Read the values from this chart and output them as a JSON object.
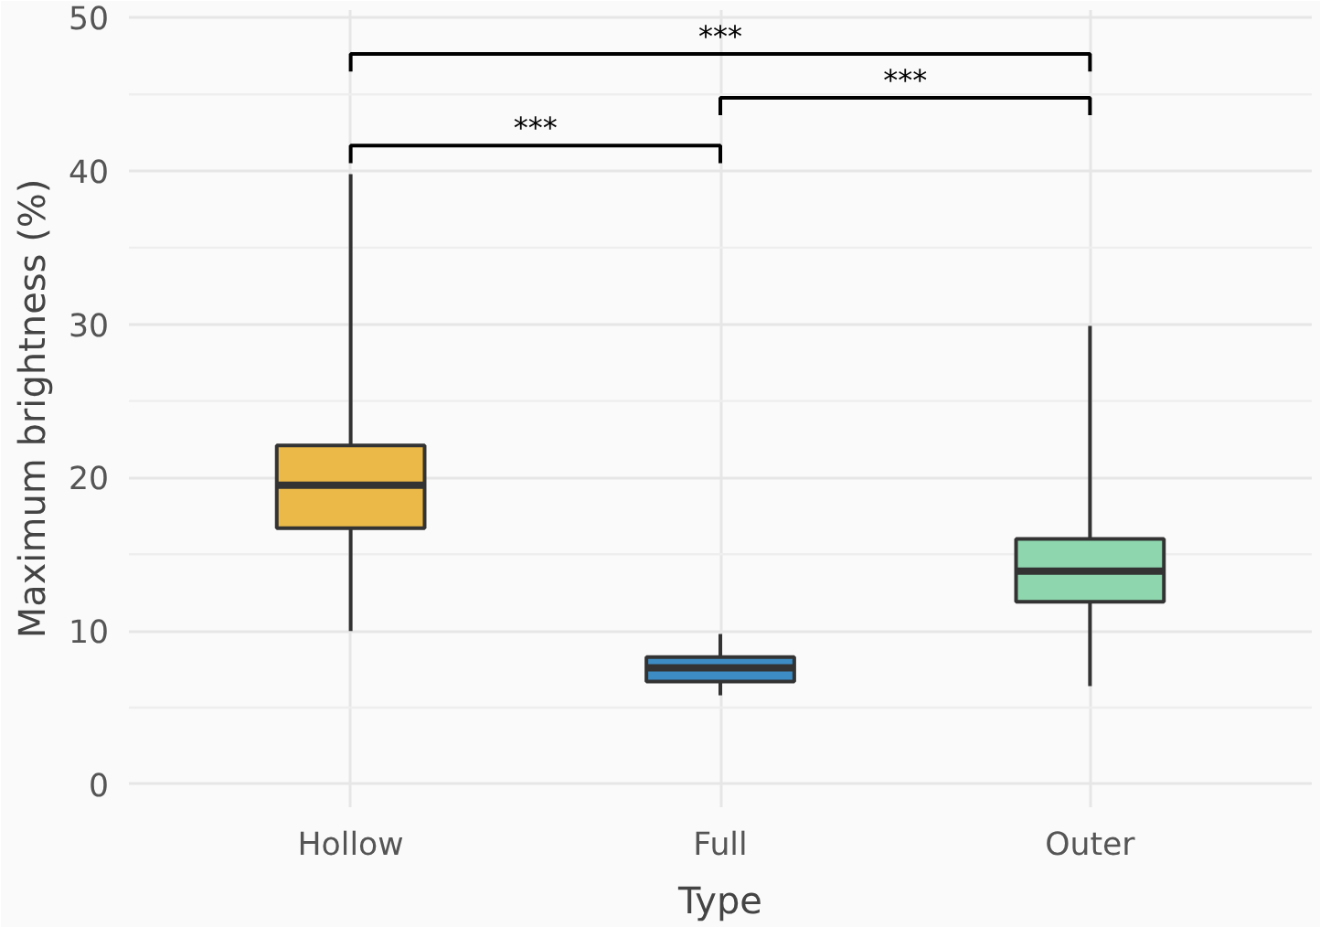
{
  "chart_data": {
    "type": "box",
    "xlabel": "Type",
    "ylabel": "Maximum brightness (%)",
    "categories": [
      "Hollow",
      "Full",
      "Outer"
    ],
    "colors": [
      "#ebb948",
      "#3d8cc4",
      "#8ed6ae"
    ],
    "boxes": [
      {
        "low": 10.0,
        "q1": 16.7,
        "median": 19.5,
        "q3": 22.1,
        "high": 39.8
      },
      {
        "low": 5.8,
        "q1": 6.7,
        "median": 7.6,
        "q3": 8.3,
        "high": 9.8
      },
      {
        "low": 6.4,
        "q1": 11.9,
        "median": 13.9,
        "q3": 16.0,
        "high": 29.9
      }
    ],
    "ylim": [
      -1.5,
      50.5
    ],
    "yticks": [
      0,
      10,
      20,
      30,
      40,
      50
    ],
    "grid": true,
    "annotations": [
      "***",
      "***",
      "***"
    ]
  }
}
